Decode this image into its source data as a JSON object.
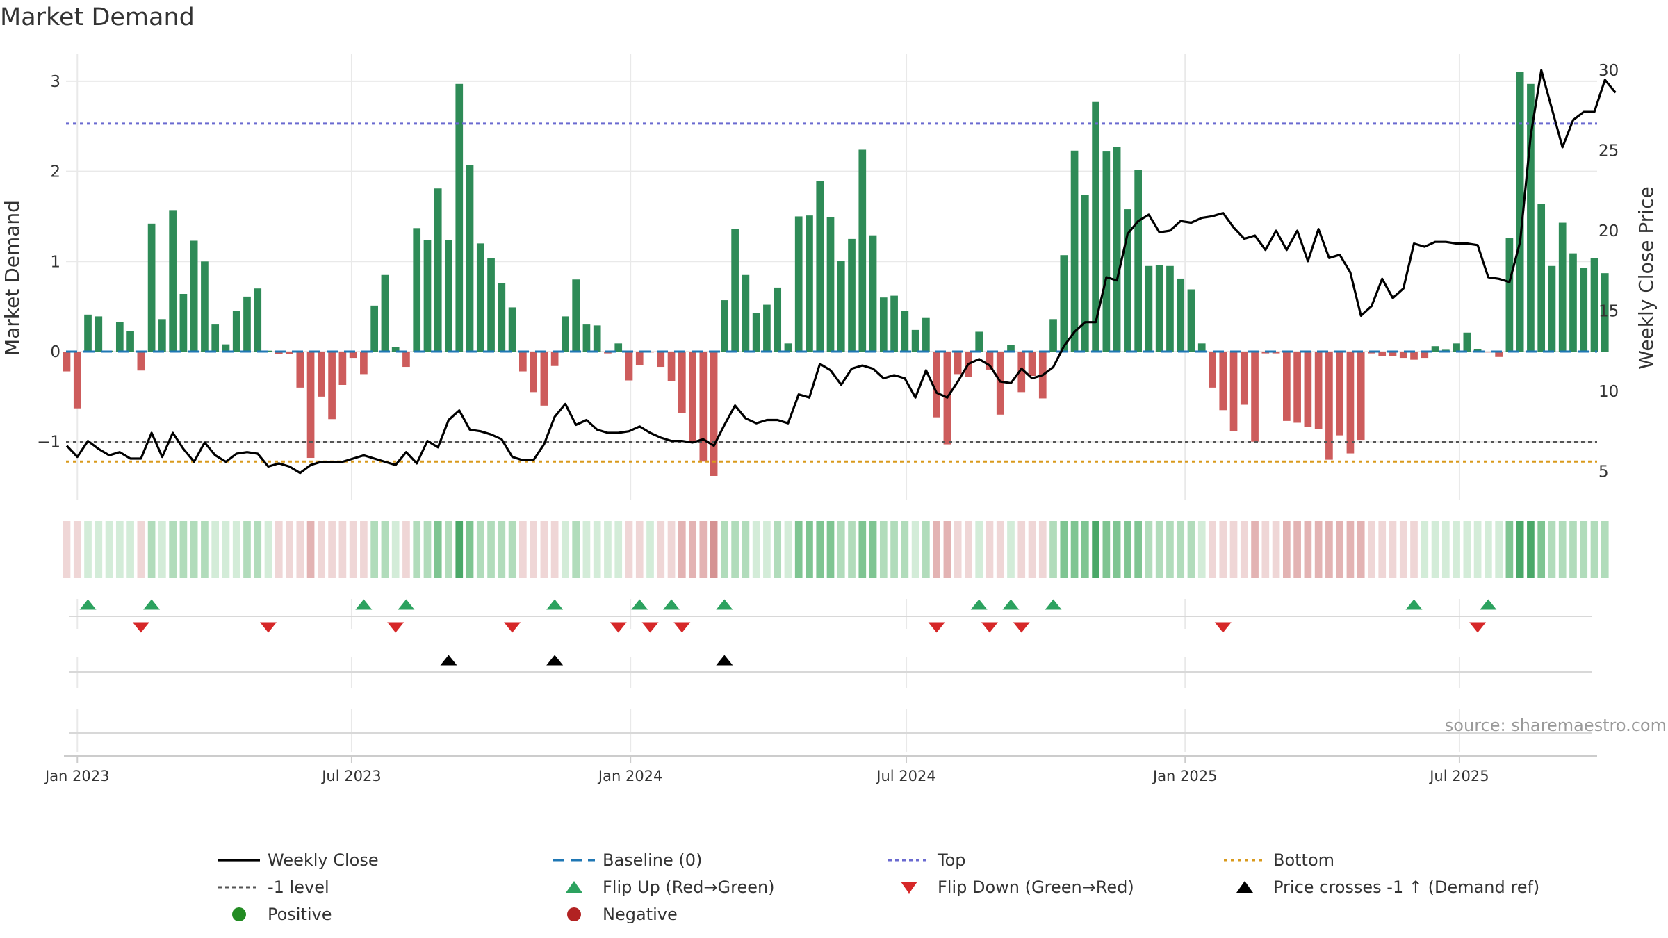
{
  "chart_data": {
    "type": "bar",
    "title": "Market Demand",
    "ylabel_left": "Market Demand",
    "ylabel_right": "Weekly Close Price",
    "y_left_ticks": [
      "−1",
      "0",
      "1",
      "2",
      "3"
    ],
    "y_left_tick_values": [
      -1,
      0,
      1,
      2,
      3
    ],
    "y_right_ticks": [
      "5",
      "10",
      "15",
      "20",
      "25",
      "30"
    ],
    "y_right_tick_values": [
      5,
      10,
      15,
      20,
      25,
      30
    ],
    "ylim_left": [
      -1.65,
      3.3
    ],
    "ylim_right": [
      3.2,
      31.0
    ],
    "x_start": "2022-12-25",
    "week_count": 145,
    "x_ticks": [
      {
        "label": "Jan 2023",
        "date": "2023-01-01"
      },
      {
        "label": "Jul 2023",
        "date": "2023-07-01"
      },
      {
        "label": "Jan 2024",
        "date": "2024-01-01"
      },
      {
        "label": "Jul 2024",
        "date": "2024-07-01"
      },
      {
        "label": "Jan 2025",
        "date": "2025-01-01"
      },
      {
        "label": "Jul 2025",
        "date": "2025-07-01"
      }
    ],
    "reference_lines": {
      "baseline": 0,
      "minus_one": -1,
      "top": 2.53,
      "bottom": -1.22
    },
    "demand": [
      -0.22,
      -0.63,
      0.41,
      0.39,
      0.01,
      0.33,
      0.23,
      -0.21,
      1.42,
      0.36,
      1.57,
      0.64,
      1.23,
      1.0,
      0.3,
      0.08,
      0.45,
      0.61,
      0.7,
      0.01,
      -0.03,
      -0.03,
      -0.4,
      -1.18,
      -0.5,
      -0.75,
      -0.37,
      -0.07,
      -0.25,
      0.51,
      0.85,
      0.05,
      -0.17,
      1.37,
      1.24,
      1.81,
      1.24,
      2.97,
      2.07,
      1.2,
      1.04,
      0.76,
      0.49,
      -0.22,
      -0.45,
      -0.6,
      -0.16,
      0.39,
      0.8,
      0.3,
      0.29,
      -0.02,
      0.09,
      -0.32,
      -0.15,
      -0.01,
      -0.17,
      -0.33,
      -0.68,
      -1.0,
      -1.22,
      -1.38,
      0.57,
      1.36,
      0.85,
      0.43,
      0.52,
      0.71,
      0.09,
      1.5,
      1.51,
      1.89,
      1.49,
      1.01,
      1.25,
      2.24,
      1.29,
      0.6,
      0.62,
      0.45,
      0.24,
      0.38,
      -0.73,
      -1.03,
      -0.25,
      -0.28,
      0.22,
      -0.2,
      -0.7,
      0.07,
      -0.45,
      -0.27,
      -0.52,
      0.36,
      1.07,
      2.23,
      1.74,
      2.77,
      2.22,
      2.27,
      1.58,
      2.02,
      0.95,
      0.96,
      0.95,
      0.81,
      0.69,
      0.09,
      -0.4,
      -0.65,
      -0.88,
      -0.59,
      -1.0,
      -0.02,
      -0.02,
      -0.77,
      -0.79,
      -0.84,
      -0.86,
      -1.2,
      -0.93,
      -1.13,
      -0.98,
      -0.02,
      -0.05,
      -0.05,
      -0.07,
      -0.09,
      -0.07,
      0.06,
      0.02,
      0.09,
      0.21,
      0.03,
      -0.01,
      -0.06,
      1.26,
      3.1,
      2.97,
      1.64,
      0.95,
      1.43,
      1.09,
      0.93,
      1.04,
      0.87
    ],
    "price": [
      6.6,
      5.9,
      6.9,
      6.4,
      6.0,
      6.2,
      5.8,
      5.8,
      7.4,
      5.9,
      7.4,
      6.4,
      5.6,
      6.8,
      6.0,
      5.6,
      6.1,
      6.2,
      6.1,
      5.3,
      5.5,
      5.3,
      4.9,
      5.4,
      5.6,
      5.6,
      5.6,
      5.8,
      6.0,
      5.8,
      5.6,
      5.4,
      6.2,
      5.5,
      6.9,
      6.5,
      8.2,
      8.8,
      7.6,
      7.5,
      7.3,
      7.0,
      5.9,
      5.7,
      5.7,
      6.7,
      8.4,
      9.2,
      7.9,
      8.2,
      7.6,
      7.4,
      7.4,
      7.5,
      7.8,
      7.4,
      7.1,
      6.9,
      6.9,
      6.8,
      7.0,
      6.6,
      7.9,
      9.1,
      8.3,
      8.0,
      8.2,
      8.2,
      8.0,
      9.8,
      9.6,
      11.7,
      11.3,
      10.4,
      11.4,
      11.6,
      11.4,
      10.8,
      11.0,
      10.8,
      9.6,
      11.3,
      9.9,
      9.6,
      10.6,
      11.7,
      12.0,
      11.6,
      10.6,
      10.5,
      11.4,
      10.8,
      11.0,
      11.5,
      12.8,
      13.7,
      14.3,
      14.3,
      17.1,
      16.9,
      19.8,
      20.6,
      21.0,
      19.9,
      20.0,
      20.6,
      20.5,
      20.8,
      20.9,
      21.1,
      20.2,
      19.5,
      19.7,
      18.8,
      20.0,
      18.8,
      20.0,
      18.1,
      20.1,
      18.3,
      18.5,
      17.4,
      14.7,
      15.3,
      17.0,
      15.8,
      16.4,
      19.2,
      19.0,
      19.3,
      19.3,
      19.2,
      19.2,
      19.1,
      17.1,
      17.0,
      16.8,
      19.3,
      25.9,
      30.0,
      27.6,
      25.2,
      26.9,
      27.4,
      27.4,
      29.4,
      28.6
    ],
    "shade_levels": [
      -1,
      -1,
      1,
      1,
      1,
      1,
      1,
      -1,
      2,
      1,
      2,
      2,
      2,
      2,
      1,
      1,
      1,
      2,
      2,
      1,
      -1,
      -1,
      -1,
      -2,
      -1,
      -1,
      -1,
      -1,
      -1,
      2,
      2,
      1,
      -1,
      2,
      2,
      3,
      2,
      4,
      3,
      2,
      2,
      2,
      2,
      -1,
      -1,
      -1,
      -1,
      1,
      2,
      1,
      1,
      1,
      1,
      -1,
      -1,
      1,
      -1,
      -1,
      -2,
      -2,
      -2,
      -3,
      2,
      2,
      2,
      1,
      1,
      2,
      1,
      3,
      3,
      3,
      3,
      2,
      2,
      3,
      3,
      2,
      2,
      2,
      1,
      2,
      -2,
      -2,
      -1,
      -1,
      1,
      -1,
      -1,
      1,
      -1,
      -1,
      -1,
      2,
      3,
      3,
      3,
      4,
      3,
      3,
      3,
      3,
      2,
      2,
      2,
      2,
      2,
      1,
      -1,
      -1,
      -1,
      -1,
      -2,
      -1,
      -1,
      -2,
      -2,
      -2,
      -2,
      -2,
      -2,
      -2,
      -2,
      -1,
      -1,
      -1,
      -1,
      -1,
      1,
      1,
      1,
      1,
      1,
      1,
      1,
      1,
      3,
      4,
      4,
      3,
      2,
      2,
      2,
      2,
      2,
      2
    ],
    "flip_up_weeks": [
      2,
      8,
      28,
      32,
      46,
      54,
      57,
      62,
      86,
      89,
      93,
      127,
      134
    ],
    "flip_down_weeks": [
      7,
      19,
      31,
      42,
      52,
      55,
      58,
      82,
      87,
      90,
      109,
      133
    ],
    "price_cross_weeks": [
      36,
      46,
      62
    ],
    "annotation": "source: sharemaestro.com",
    "legend": [
      {
        "label": "Weekly Close",
        "marker": "line-solid",
        "color": "#000000"
      },
      {
        "label": "Baseline (0)",
        "marker": "line-dash",
        "color": "#1f77b4"
      },
      {
        "label": "Top",
        "marker": "line-dot",
        "color": "#6a6ad0"
      },
      {
        "label": "Bottom",
        "marker": "line-dot",
        "color": "#d99a1c"
      },
      {
        "label": "-1 level",
        "marker": "line-dot",
        "color": "#555555"
      },
      {
        "label": "Flip Up (Red→Green)",
        "marker": "triangle-up",
        "color": "#2ca25f"
      },
      {
        "label": "Flip Down (Green→Red)",
        "marker": "triangle-down",
        "color": "#d62728"
      },
      {
        "label": "Price crosses -1 ↑ (Demand ref)",
        "marker": "triangle-up",
        "color": "#000000"
      },
      {
        "label": "Positive",
        "marker": "circle",
        "color": "#228b22"
      },
      {
        "label": "Negative",
        "marker": "circle",
        "color": "#b22222"
      }
    ],
    "colors": {
      "positive": "#2e8b57",
      "negative": "#cd5c5c",
      "price": "#000000",
      "baseline": "#1f77b4",
      "top": "#6a6ad0",
      "bottom": "#d99a1c",
      "minus_one": "#555555",
      "flip_up": "#2ca25f",
      "flip_down": "#d62728",
      "cross": "#000000",
      "grid": "#e9e9e9"
    }
  }
}
